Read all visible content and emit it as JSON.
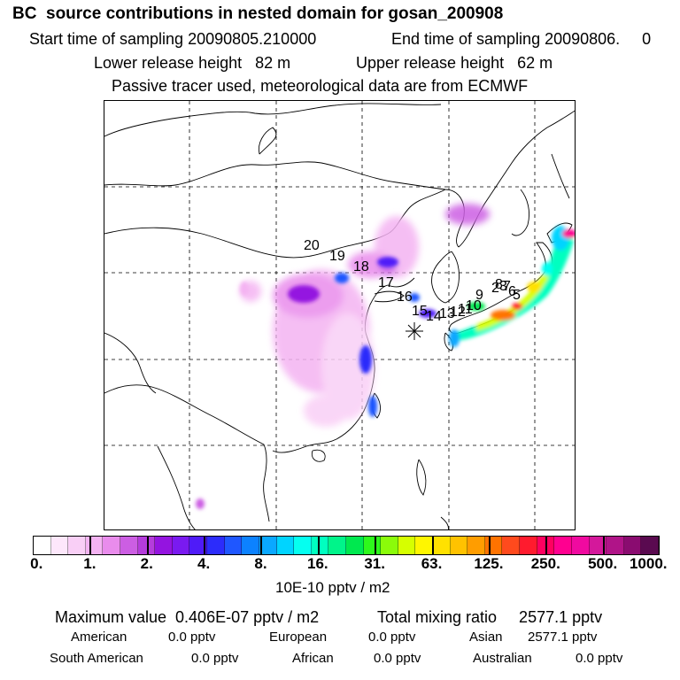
{
  "header": {
    "title": "BC  source contributions in nested domain for gosan_200908",
    "start_label": "Start time of sampling 20090805.210000",
    "end_label": "End time of sampling 20090806.     0",
    "lower_label": "Lower release height   82 m",
    "upper_label": "Upper release height   62 m",
    "note": "Passive tracer used, meteorological data are from ECMWF"
  },
  "map": {
    "station_marker": "asterisk-icon",
    "trajectory_labels": [
      "20",
      "19",
      "18",
      "17",
      "16",
      "15",
      "14",
      "13",
      "12",
      "11",
      "10",
      "9",
      "8",
      "7",
      "6",
      "5",
      "3",
      "2"
    ]
  },
  "colorbar": {
    "colors": [
      "#ffffff",
      "#fde7fb",
      "#f9cff6",
      "#f4b3f2",
      "#e98cec",
      "#cc5ee3",
      "#b53cdc",
      "#9414e0",
      "#7a1af0",
      "#4f1bf8",
      "#2c2cfb",
      "#1f57ff",
      "#0c82ff",
      "#0aa8ff",
      "#00d4ff",
      "#05fff0",
      "#00ffc0",
      "#00f48a",
      "#00e84f",
      "#2ef81c",
      "#8bfb0a",
      "#d6ff00",
      "#fff600",
      "#ffe100",
      "#ffc200",
      "#ff9d00",
      "#ff7300",
      "#ff4a1d",
      "#ff1b2e",
      "#ff0060",
      "#ff0090",
      "#f00aa0",
      "#d4189b",
      "#b01488",
      "#8a0c70",
      "#5a0a50"
    ],
    "ticks": [
      "0.",
      "1.",
      "2.",
      "4.",
      "8.",
      "16.",
      "31.",
      "63.",
      "125.",
      "250.",
      "500.",
      "1000."
    ],
    "unit": "10E-10 pptv / m2"
  },
  "stats": {
    "max_label": "Maximum value  0.406E-07 pptv / m2",
    "total_label": "Total mixing ratio     2577.1 pptv",
    "regions": [
      {
        "name": "American",
        "value": "0.0 pptv"
      },
      {
        "name": "European",
        "value": "0.0 pptv"
      },
      {
        "name": "Asian",
        "value": "2577.1 pptv"
      },
      {
        "name": "South American",
        "value": "0.0 pptv"
      },
      {
        "name": "African",
        "value": "0.0 pptv"
      },
      {
        "name": "Australian",
        "value": "0.0 pptv"
      }
    ]
  }
}
